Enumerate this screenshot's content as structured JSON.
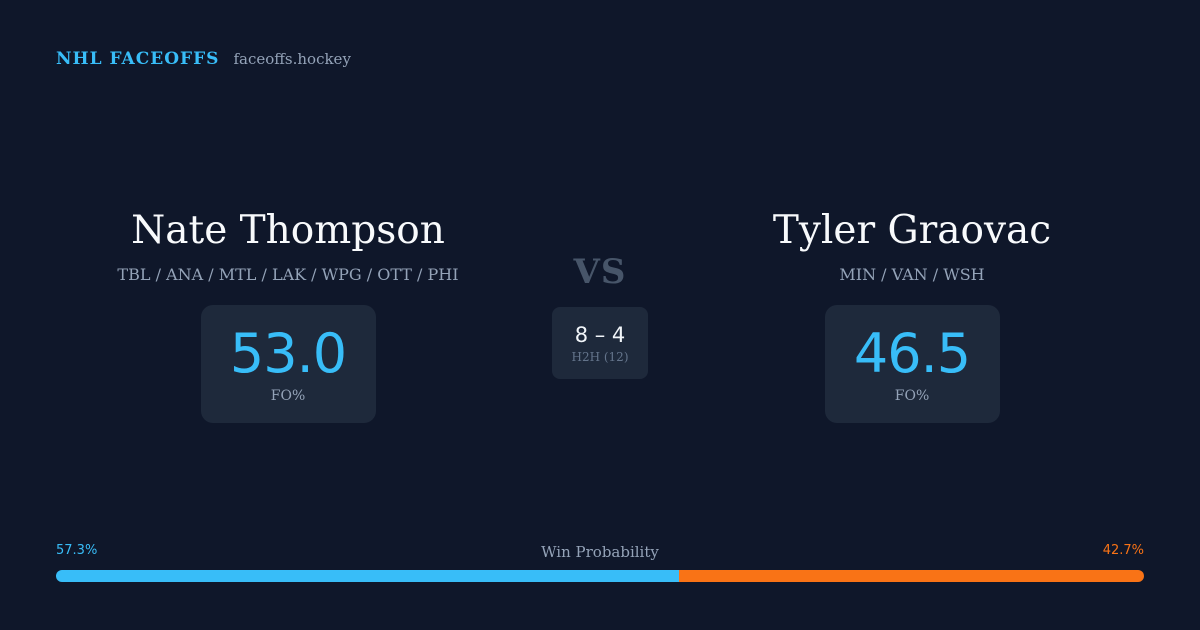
{
  "header": {
    "brand": "NHL FACEOFFS",
    "site": "faceoffs.hockey"
  },
  "player_left": {
    "name": "Nate Thompson",
    "teams": "TBL / ANA / MTL / LAK / WPG / OTT / PHI",
    "fo_pct": "53.0",
    "fo_label": "FO%"
  },
  "player_right": {
    "name": "Tyler Graovac",
    "teams": "MIN / VAN / WSH",
    "fo_pct": "46.5",
    "fo_label": "FO%"
  },
  "matchup": {
    "vs": "VS",
    "h2h_score": "8 – 4",
    "h2h_label": "H2H (12)"
  },
  "win_probability": {
    "title": "Win Probability",
    "left_label": "57.3%",
    "right_label": "42.7%",
    "left_fraction": 0.573,
    "left_color": "#38bdf8",
    "right_color": "#f97316"
  }
}
